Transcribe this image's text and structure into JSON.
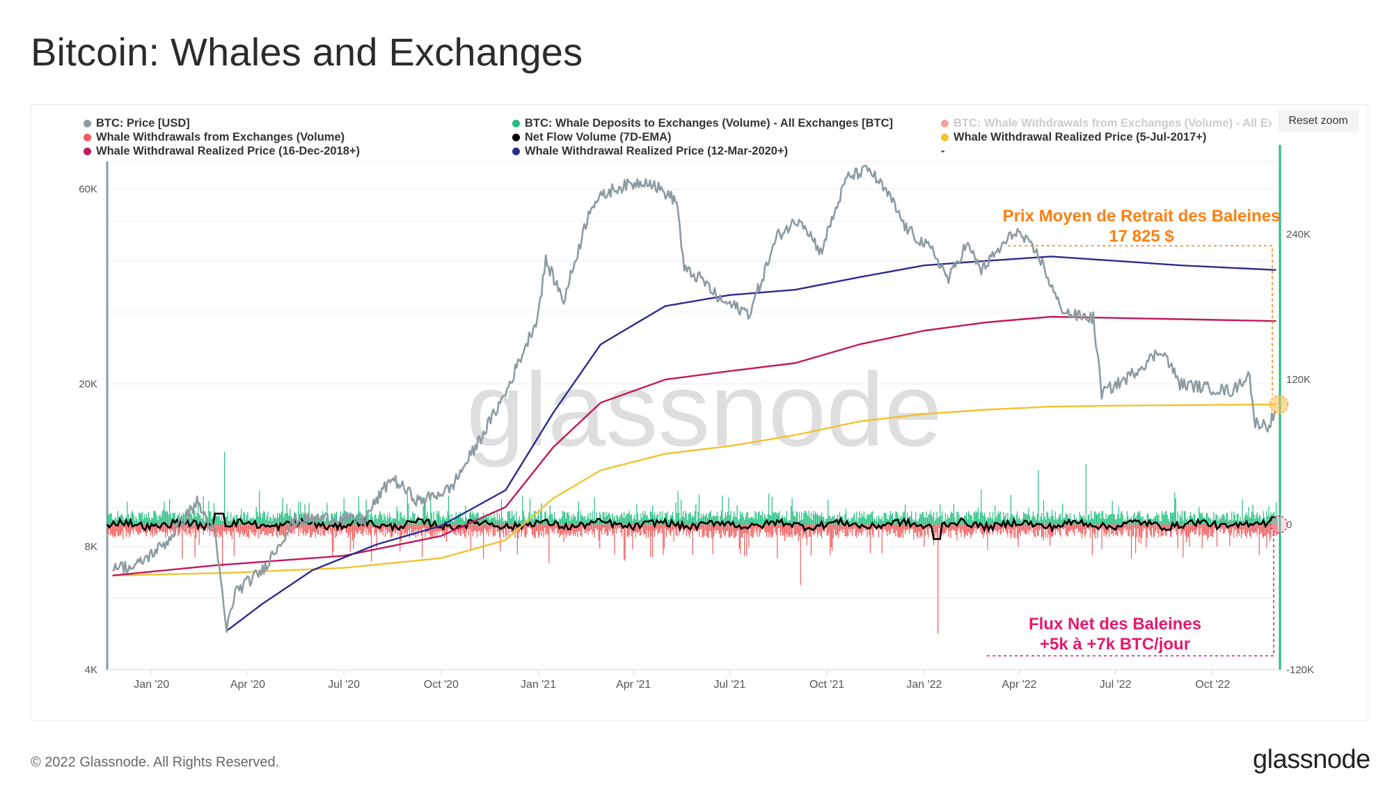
{
  "page": {
    "title": "Bitcoin: Whales and Exchanges",
    "copyright": "© 2022 Glassnode. All Rights Reserved.",
    "brand": "glassnode",
    "watermark": "glassnode",
    "reset_zoom": "Reset zoom"
  },
  "legend": [
    {
      "label": "BTC: Price [USD]",
      "color": "#8c9ba1",
      "dim": false
    },
    {
      "label": "BTC: Whale Deposits to Exchanges (Volume) - All Exchanges [BTC]",
      "color": "#1fbf7f",
      "dim": false
    },
    {
      "label": "BTC: Whale Withdrawals from Exchanges (Volume) - All Exch",
      "color": "#ef5b5b",
      "dim": true
    },
    {
      "label": "Whale Withdrawals from Exchanges (Volume)",
      "color": "#ef5b5b",
      "dim": false
    },
    {
      "label": "Net Flow Volume (7D-EMA)",
      "color": "#000000",
      "dim": false
    },
    {
      "label": "Whale Withdrawal Realized Price (5-Jul-2017+)",
      "color": "#f2c12e",
      "dim": false
    },
    {
      "label": "Whale Withdrawal Realized Price (16-Dec-2018+)",
      "color": "#c2185b",
      "dim": false
    },
    {
      "label": "Whale Withdrawal Realized Price (12-Mar-2020+)",
      "color": "#2d2a8e",
      "dim": false
    },
    {
      "label": "-",
      "color": "",
      "dim": false
    }
  ],
  "annotations": {
    "price_title": "Prix Moyen de Retrait des Baleines",
    "price_value": "17 825 $",
    "price_color": "#ff7f0e",
    "flow_title": "Flux Net des Baleines",
    "flow_value": "+5k à +7k BTC/jour",
    "flow_color": "#e5196b"
  },
  "chart_data": {
    "type": "line",
    "x_axis": {
      "ticks": [
        "Jan '20",
        "Apr '20",
        "Jul '20",
        "Oct '20",
        "Jan '21",
        "Apr '21",
        "Jul '21",
        "Oct '21",
        "Jan '22",
        "Apr '22",
        "Jul '22",
        "Oct '22"
      ]
    },
    "y_left": {
      "scale": "log",
      "ticks": [
        "4K",
        "8K",
        "20K",
        "60K"
      ],
      "range": [
        4000,
        70000
      ]
    },
    "y_right": {
      "scale": "linear",
      "ticks": [
        "-120K",
        "0",
        "120K",
        "240K"
      ],
      "range": [
        -120000,
        300000
      ]
    },
    "grid": true,
    "legend_position": "top",
    "series": [
      {
        "name": "BTC: Price [USD]",
        "color": "#8c9ba1",
        "axis": "left",
        "x": [
          "2019-11-25",
          "2019-12-15",
          "2020-01-15",
          "2020-02-13",
          "2020-03-01",
          "2020-03-12",
          "2020-03-20",
          "2020-04-15",
          "2020-05-15",
          "2020-06-15",
          "2020-07-20",
          "2020-08-15",
          "2020-09-10",
          "2020-10-10",
          "2020-11-01",
          "2020-12-01",
          "2020-12-31",
          "2021-01-08",
          "2021-01-25",
          "2021-02-20",
          "2021-03-13",
          "2021-04-14",
          "2021-05-12",
          "2021-05-19",
          "2021-06-05",
          "2021-06-22",
          "2021-07-20",
          "2021-08-15",
          "2021-09-06",
          "2021-09-25",
          "2021-10-20",
          "2021-11-10",
          "2021-11-30",
          "2021-12-15",
          "2022-01-10",
          "2022-01-24",
          "2022-02-10",
          "2022-02-24",
          "2022-03-29",
          "2022-04-20",
          "2022-05-09",
          "2022-05-20",
          "2022-06-10",
          "2022-06-18",
          "2022-07-10",
          "2022-08-14",
          "2022-08-31",
          "2022-09-30",
          "2022-10-20",
          "2022-11-05",
          "2022-11-09",
          "2022-11-22",
          "2022-11-30"
        ],
        "y": [
          7200,
          7100,
          8200,
          10300,
          8600,
          5000,
          6200,
          7000,
          9300,
          9400,
          9300,
          11800,
          10300,
          11100,
          13800,
          19000,
          29000,
          40000,
          32000,
          55000,
          60000,
          63000,
          56000,
          38000,
          36000,
          32000,
          29800,
          46000,
          51000,
          42000,
          64000,
          67000,
          57000,
          48000,
          42000,
          36000,
          44000,
          38000,
          47500,
          41000,
          31000,
          29500,
          29000,
          19000,
          20500,
          24300,
          20000,
          19500,
          19200,
          21300,
          16200,
          15800,
          17100
        ]
      },
      {
        "name": "Whale Withdrawal Realized Price (5-Jul-2017+)",
        "color": "#f2c12e",
        "axis": "left",
        "x": [
          "2019-11-25",
          "2020-03-12",
          "2020-07-01",
          "2020-10-01",
          "2020-12-01",
          "2021-01-15",
          "2021-03-01",
          "2021-05-01",
          "2021-07-01",
          "2021-09-01",
          "2021-11-01",
          "2022-01-01",
          "2022-03-01",
          "2022-05-01",
          "2022-07-01",
          "2022-09-01",
          "2022-11-30"
        ],
        "y": [
          6800,
          6900,
          7100,
          7500,
          8300,
          10500,
          12300,
          13500,
          14100,
          15000,
          16200,
          16900,
          17300,
          17600,
          17700,
          17750,
          17825
        ]
      },
      {
        "name": "Whale Withdrawal Realized Price (16-Dec-2018+)",
        "color": "#c2185b",
        "axis": "left",
        "x": [
          "2019-11-25",
          "2020-03-01",
          "2020-07-01",
          "2020-10-01",
          "2020-12-01",
          "2021-01-15",
          "2021-03-01",
          "2021-05-01",
          "2021-07-01",
          "2021-09-01",
          "2021-11-01",
          "2022-01-01",
          "2022-03-01",
          "2022-05-01",
          "2022-07-01",
          "2022-09-01",
          "2022-11-30"
        ],
        "y": [
          6800,
          7200,
          7600,
          8500,
          10000,
          14000,
          18000,
          20500,
          21500,
          22500,
          25000,
          27000,
          28300,
          29200,
          29000,
          28800,
          28500
        ]
      },
      {
        "name": "Whale Withdrawal Realized Price (12-Mar-2020+)",
        "color": "#2d2a8e",
        "axis": "left",
        "x": [
          "2020-03-13",
          "2020-04-15",
          "2020-06-01",
          "2020-08-01",
          "2020-10-01",
          "2020-12-01",
          "2021-01-15",
          "2021-03-01",
          "2021-05-01",
          "2021-07-01",
          "2021-09-01",
          "2021-11-01",
          "2022-01-01",
          "2022-03-01",
          "2022-05-01",
          "2022-07-01",
          "2022-09-01",
          "2022-11-30"
        ],
        "y": [
          5000,
          5800,
          7000,
          8100,
          9000,
          11000,
          17000,
          25000,
          31000,
          33000,
          34000,
          36500,
          39000,
          40000,
          41000,
          40000,
          39000,
          38000
        ]
      },
      {
        "name": "Net Flow Volume (7D-EMA)",
        "color": "#000000",
        "axis": "right",
        "note": "oscillates around 0 (approx. ±10K), latest +5k to +7k"
      },
      {
        "name": "BTC: Whale Deposits to Exchanges (Volume) - All Exchanges [BTC]",
        "color": "#1fbf7f",
        "axis": "right",
        "note": "daily bars typically 0–20K, spikes to ~90K"
      },
      {
        "name": "Whale Withdrawals from Exchanges (Volume)",
        "color": "#ef5b5b",
        "axis": "right",
        "note": "daily bars typically 0 to −25K, spikes to ~−90K"
      }
    ],
    "price_marker": {
      "date": "2022-11-30",
      "value": 17825
    },
    "flow_marker": {
      "date": "2022-11-30",
      "value": 0
    }
  }
}
